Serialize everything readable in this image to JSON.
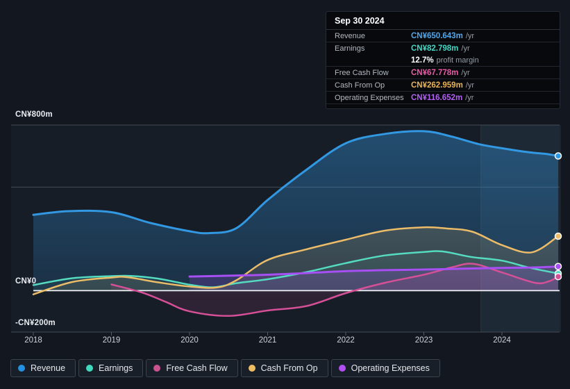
{
  "tooltip": {
    "date": "Sep 30 2024",
    "rows": [
      {
        "label": "Revenue",
        "value": "CN¥650.643m",
        "suffix": "/yr",
        "color": "#54a6e8"
      },
      {
        "label": "Earnings",
        "value": "CN¥82.798m",
        "suffix": "/yr",
        "color": "#44d8c4"
      },
      {
        "label": "Free Cash Flow",
        "value": "CN¥67.778m",
        "suffix": "/yr",
        "color": "#e95ba5"
      },
      {
        "label": "Cash From Op",
        "value": "CN¥262.959m",
        "suffix": "/yr",
        "color": "#e9b456"
      },
      {
        "label": "Operating Expenses",
        "value": "CN¥116.652m",
        "suffix": "/yr",
        "color": "#b160f2"
      }
    ],
    "profit_margin": {
      "value": "12.7%",
      "label": "profit margin"
    }
  },
  "y_axis": {
    "tick_labels": [
      {
        "text": "CN¥800m",
        "value": 800
      },
      {
        "text": "CN¥0",
        "value": 0
      },
      {
        "text": "-CN¥200m",
        "value": -200
      }
    ]
  },
  "x_axis": {
    "tick_labels": [
      "2018",
      "2019",
      "2020",
      "2021",
      "2022",
      "2023",
      "2024"
    ]
  },
  "legend": {
    "items": [
      {
        "label": "Revenue",
        "color": "#2491e0"
      },
      {
        "label": "Earnings",
        "color": "#40d9bd"
      },
      {
        "label": "Free Cash Flow",
        "color": "#c9538f"
      },
      {
        "label": "Cash From Op",
        "color": "#edbd64"
      },
      {
        "label": "Operating Expenses",
        "color": "#b14ff2"
      }
    ]
  },
  "chart_data": {
    "type": "area",
    "unit": "CN¥ millions per year",
    "x_range": [
      2018,
      2024.72
    ],
    "ylim": [
      -200,
      800
    ],
    "y_gridline_values": [
      800,
      500,
      -200
    ],
    "zero_line_value": 0,
    "highlight_band_x": [
      2023.73,
      2024.72
    ],
    "grid": "horizontal-only",
    "legend_position": "bottom",
    "series": [
      {
        "name": "Revenue",
        "color": "#3398e2",
        "line_width": 3,
        "fill_top": 0.4,
        "fill_bottom": 0.1,
        "points": [
          [
            2018,
            366
          ],
          [
            2018.45,
            384
          ],
          [
            2019,
            379
          ],
          [
            2019.5,
            327
          ],
          [
            2020,
            287
          ],
          [
            2020.25,
            278
          ],
          [
            2020.6,
            302
          ],
          [
            2021,
            438
          ],
          [
            2021.5,
            585
          ],
          [
            2022,
            712
          ],
          [
            2022.5,
            757
          ],
          [
            2023,
            770
          ],
          [
            2023.35,
            745
          ],
          [
            2023.7,
            708
          ],
          [
            2024,
            688
          ],
          [
            2024.35,
            668
          ],
          [
            2024.55,
            661
          ],
          [
            2024.72,
            650.6
          ]
        ]
      },
      {
        "name": "Earnings",
        "color": "#55dcc0",
        "line_width": 2.5,
        "fill_top": 0.16,
        "fill_bottom": 0.04,
        "points": [
          [
            2018,
            27
          ],
          [
            2018.5,
            60
          ],
          [
            2019,
            70
          ],
          [
            2019.25,
            71
          ],
          [
            2019.6,
            58
          ],
          [
            2020,
            29
          ],
          [
            2020.3,
            16
          ],
          [
            2020.6,
            36
          ],
          [
            2021,
            55
          ],
          [
            2021.5,
            90
          ],
          [
            2022,
            133
          ],
          [
            2022.5,
            170
          ],
          [
            2023,
            187
          ],
          [
            2023.25,
            189
          ],
          [
            2023.6,
            163
          ],
          [
            2024,
            145
          ],
          [
            2024.35,
            111
          ],
          [
            2024.72,
            82.8
          ]
        ]
      },
      {
        "name": "Cash From Op",
        "color": "#ecbc69",
        "line_width": 2.5,
        "fill_top": 0.28,
        "fill_bottom": 0.06,
        "points": [
          [
            2018,
            -18
          ],
          [
            2018.5,
            42
          ],
          [
            2019,
            63
          ],
          [
            2019.2,
            65
          ],
          [
            2019.6,
            40
          ],
          [
            2020,
            20
          ],
          [
            2020.35,
            15
          ],
          [
            2020.6,
            50
          ],
          [
            2021,
            148
          ],
          [
            2021.5,
            200
          ],
          [
            2022,
            246
          ],
          [
            2022.5,
            290
          ],
          [
            2023,
            306
          ],
          [
            2023.3,
            300
          ],
          [
            2023.62,
            285
          ],
          [
            2024,
            220
          ],
          [
            2024.38,
            185
          ],
          [
            2024.72,
            263
          ]
        ]
      },
      {
        "name": "Free Cash Flow",
        "color": "#d65097",
        "line_width": 2.5,
        "fill_top": 0.24,
        "fill_bottom": 0.1,
        "points": [
          [
            2019,
            30
          ],
          [
            2019.4,
            -10
          ],
          [
            2019.7,
            -55
          ],
          [
            2020,
            -100
          ],
          [
            2020.5,
            -122
          ],
          [
            2021,
            -96
          ],
          [
            2021.5,
            -74
          ],
          [
            2022,
            -12
          ],
          [
            2022.5,
            38
          ],
          [
            2023,
            77
          ],
          [
            2023.35,
            112
          ],
          [
            2023.63,
            130
          ],
          [
            2024,
            88
          ],
          [
            2024.42,
            38
          ],
          [
            2024.6,
            45
          ],
          [
            2024.72,
            67.8
          ]
        ]
      },
      {
        "name": "Operating Expenses",
        "color": "#a64ff2",
        "line_width": 3,
        "fill_top": 0.3,
        "fill_bottom": 0.16,
        "points": [
          [
            2020,
            68
          ],
          [
            2020.5,
            72
          ],
          [
            2021,
            77
          ],
          [
            2021.5,
            85
          ],
          [
            2022,
            94
          ],
          [
            2022.5,
            99
          ],
          [
            2023,
            102
          ],
          [
            2023.5,
            106
          ],
          [
            2024,
            110
          ],
          [
            2024.4,
            112
          ],
          [
            2024.72,
            116.7
          ]
        ]
      }
    ]
  }
}
